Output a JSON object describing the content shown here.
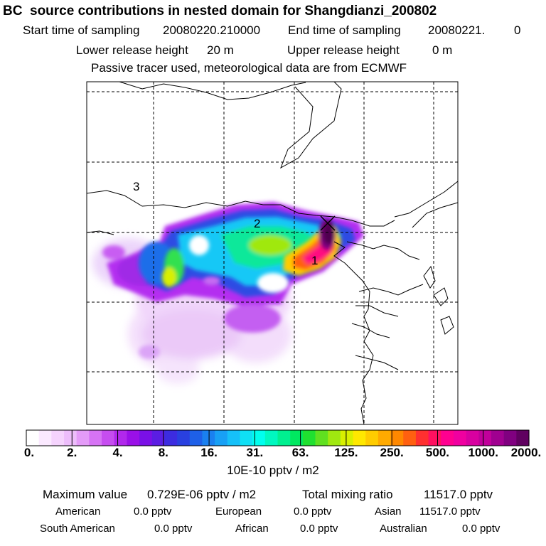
{
  "title": "BC  source contributions in nested domain for Shangdianzi_200802",
  "sampling": {
    "start_label": "Start time of sampling",
    "start_value": "20080220.210000",
    "end_label": "End time of sampling",
    "end_value": "20080221.",
    "end_extra": "0"
  },
  "release": {
    "lower_label": "Lower release height",
    "lower_value": "20 m",
    "upper_label": "Upper release height",
    "upper_value": "0 m"
  },
  "note": "Passive tracer used, meteorological data are from ECMWF",
  "map": {
    "region_labels": [
      "1",
      "2",
      "3"
    ],
    "receptor_marker": "x-marker",
    "grid": "dashed"
  },
  "colorbar": {
    "ticks": [
      "0.",
      "2.",
      "4.",
      "8.",
      "16.",
      "31.",
      "63.",
      "125.",
      "250.",
      "500.",
      "1000.",
      "2000."
    ],
    "unit": "10E-10 pptv / m2",
    "colors": [
      "#ffffff",
      "#fbe9ff",
      "#f5d3fd",
      "#edbdfb",
      "#e49bf8",
      "#d673f4",
      "#c64df0",
      "#b128ec",
      "#9a10e8",
      "#7a10e6",
      "#5b1de3",
      "#3c2ce0",
      "#2940e0",
      "#1e60e8",
      "#1a80f0",
      "#18a0f5",
      "#16c0f8",
      "#0fe0f5",
      "#00ffee",
      "#00f8c0",
      "#00f090",
      "#00e860",
      "#20e030",
      "#60e020",
      "#a0e810",
      "#d8f000",
      "#ffe800",
      "#ffcc00",
      "#ffaa00",
      "#ff8800",
      "#ff6010",
      "#ff3030",
      "#ff1060",
      "#ff0090",
      "#f000a0",
      "#d800a0",
      "#c0009a",
      "#a00090",
      "#800080",
      "#600060"
    ]
  },
  "stats": {
    "max_label": "Maximum value",
    "max_value": "0.729E-06 pptv / m2",
    "total_label": "Total mixing ratio",
    "total_value": "11517.0 pptv",
    "regions": [
      {
        "name": "American",
        "value": "0.0 pptv"
      },
      {
        "name": "European",
        "value": "0.0 pptv"
      },
      {
        "name": "Asian",
        "value": "11517.0 pptv"
      },
      {
        "name": "South American",
        "value": "0.0 pptv"
      },
      {
        "name": "African",
        "value": "0.0 pptv"
      },
      {
        "name": "Australian",
        "value": "0.0 pptv"
      }
    ]
  }
}
